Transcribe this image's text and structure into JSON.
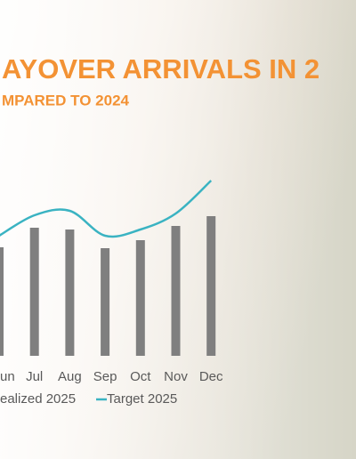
{
  "chart_data": {
    "type": "bar_line",
    "title": "AYOVER ARRIVALS IN 2",
    "subtitle": "MPARED TO 2024",
    "categories": [
      "un",
      "Jul",
      "Aug",
      "Sep",
      "Oct",
      "Nov",
      "Dec"
    ],
    "series": [
      {
        "name": "ealized 2025",
        "type": "bar",
        "color": "#7f7f7f",
        "values": [
          122,
          144,
          142,
          121,
          130,
          146,
          157
        ]
      },
      {
        "name": "Target 2025",
        "type": "line",
        "color": "#3ab3c2",
        "values": [
          135,
          158,
          163,
          135,
          142,
          160,
          197
        ]
      }
    ],
    "ylim": [
      0,
      200
    ],
    "title_color": "#f39234"
  }
}
